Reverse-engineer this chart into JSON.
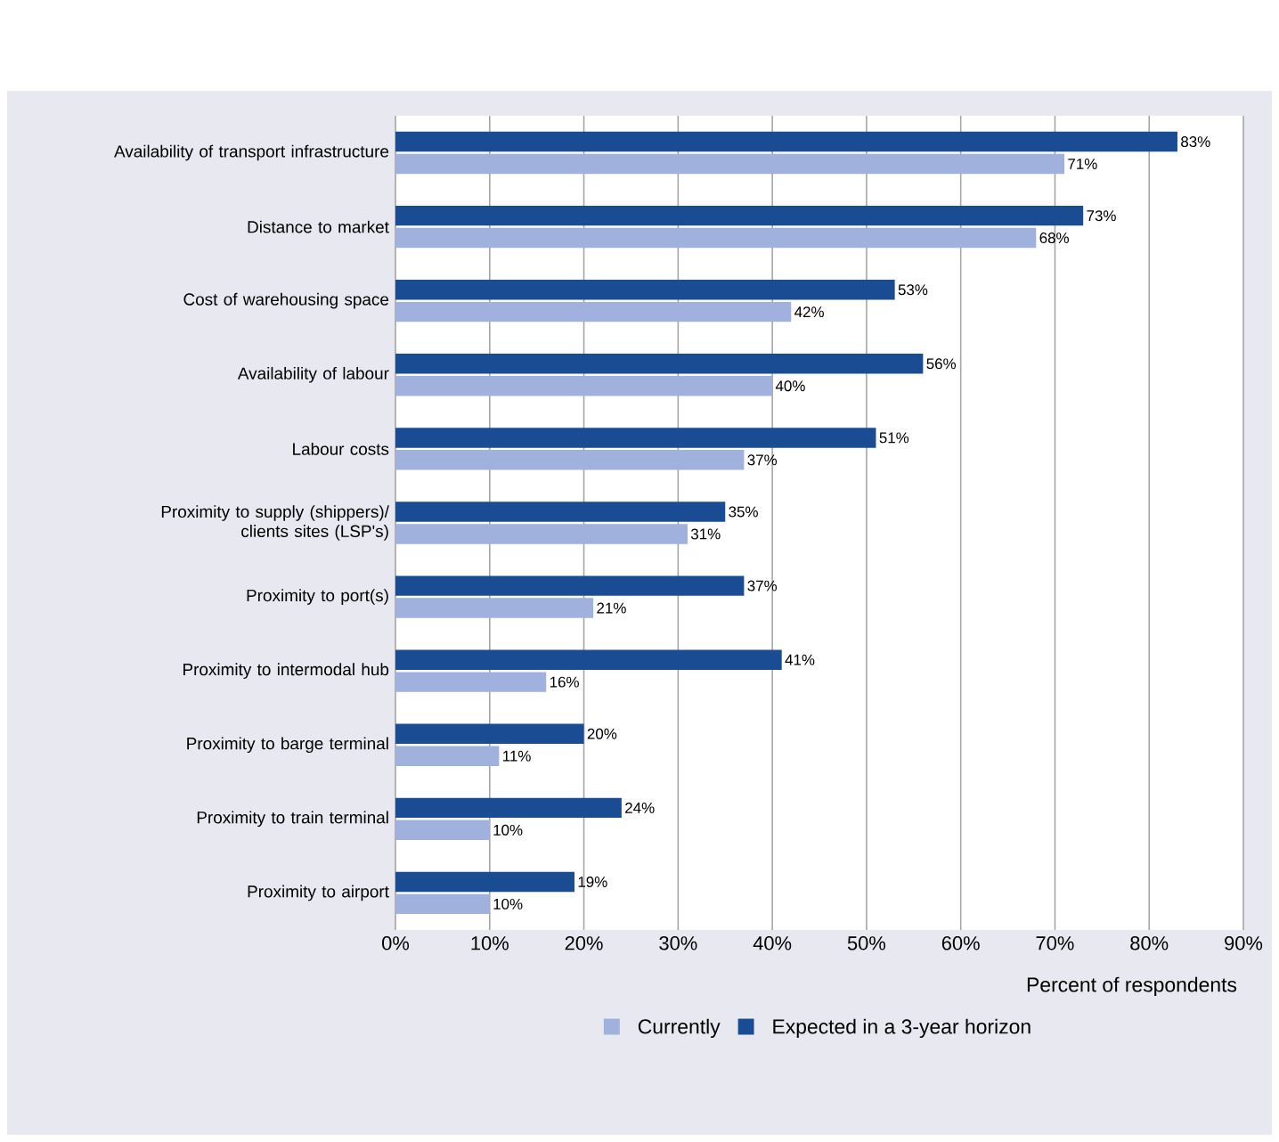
{
  "chart_data": {
    "type": "bar",
    "orientation": "horizontal",
    "categories": [
      "Availability of transport infrastructure",
      "Distance to market",
      "Cost of warehousing space",
      "Availability of labour",
      "Labour costs",
      "Proximity to supply (shippers)/ clients sites (LSP's)",
      "Proximity to port(s)",
      "Proximity to intermodal hub",
      "Proximity to barge terminal",
      "Proximity to train terminal",
      "Proximity to airport"
    ],
    "series": [
      {
        "name": "Currently",
        "color": "#9fb1dc",
        "values": [
          71,
          68,
          42,
          40,
          37,
          31,
          21,
          16,
          11,
          10,
          10
        ],
        "value_labels": [
          "71%",
          "68%",
          "42%",
          "40%",
          "37%",
          "31%",
          "21%",
          "16%",
          "11%",
          "10%",
          "10%"
        ]
      },
      {
        "name": "Expected in a 3-year horizon",
        "color": "#1a4c94",
        "values": [
          83,
          73,
          53,
          56,
          51,
          35,
          37,
          41,
          20,
          24,
          19
        ],
        "value_labels": [
          "83%",
          "73%",
          "53%",
          "56%",
          "51%",
          "35%",
          "37%",
          "41%",
          "20%",
          "24%",
          "19%"
        ]
      }
    ],
    "xlim": [
      0,
      90
    ],
    "xticks": [
      {
        "value": 0,
        "label": "0%"
      },
      {
        "value": 10,
        "label": "10%"
      },
      {
        "value": 20,
        "label": "20%"
      },
      {
        "value": 30,
        "label": "30%"
      },
      {
        "value": 40,
        "label": "40%"
      },
      {
        "value": 50,
        "label": "50%"
      },
      {
        "value": 60,
        "label": "60%"
      },
      {
        "value": 70,
        "label": "70%"
      },
      {
        "value": 80,
        "label": "80%"
      },
      {
        "value": 90,
        "label": "90%"
      }
    ],
    "xlabel": "Percent of respondents",
    "grid": "x",
    "legend": "bottom"
  }
}
